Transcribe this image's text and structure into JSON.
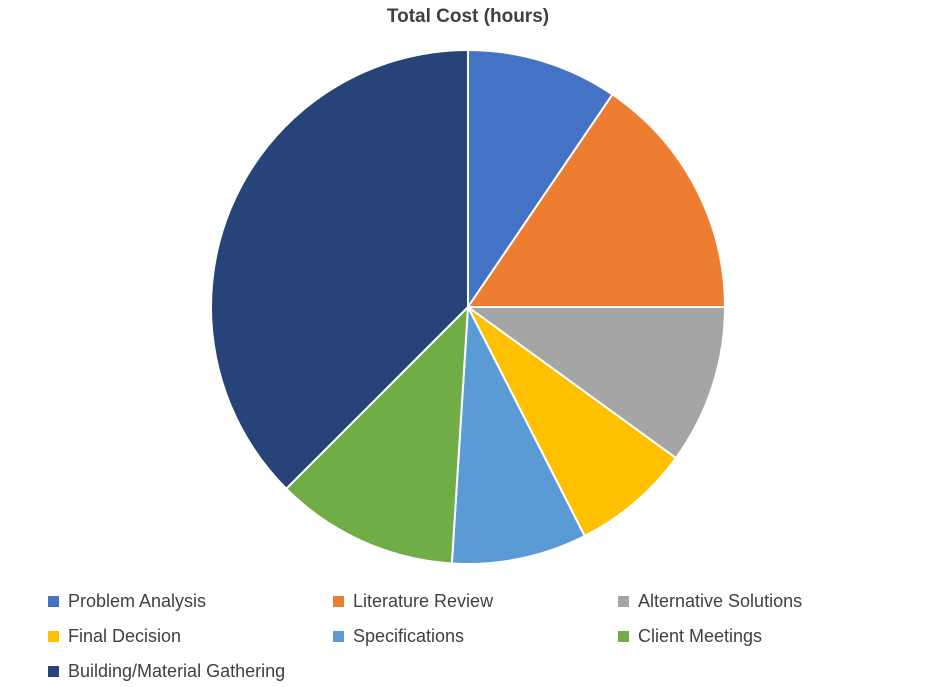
{
  "chart_data": {
    "type": "pie",
    "title": "Total Cost (hours)",
    "start_angle": "top",
    "direction": "clockwise",
    "legend_position": "bottom",
    "slices": [
      {
        "label": "Problem Analysis",
        "value": 9.5,
        "color": "#4472C4"
      },
      {
        "label": "Literature Review",
        "value": 15.5,
        "color": "#ED7D31"
      },
      {
        "label": "Alternative Solutions",
        "value": 10.0,
        "color": "#A5A5A5"
      },
      {
        "label": "Final Decision",
        "value": 7.5,
        "color": "#FFC000"
      },
      {
        "label": "Specifications",
        "value": 8.5,
        "color": "#5B9BD5"
      },
      {
        "label": "Client Meetings",
        "value": 11.5,
        "color": "#70AD47"
      },
      {
        "label": "Building/Material Gathering",
        "value": 37.5,
        "color": "#264478"
      }
    ]
  }
}
